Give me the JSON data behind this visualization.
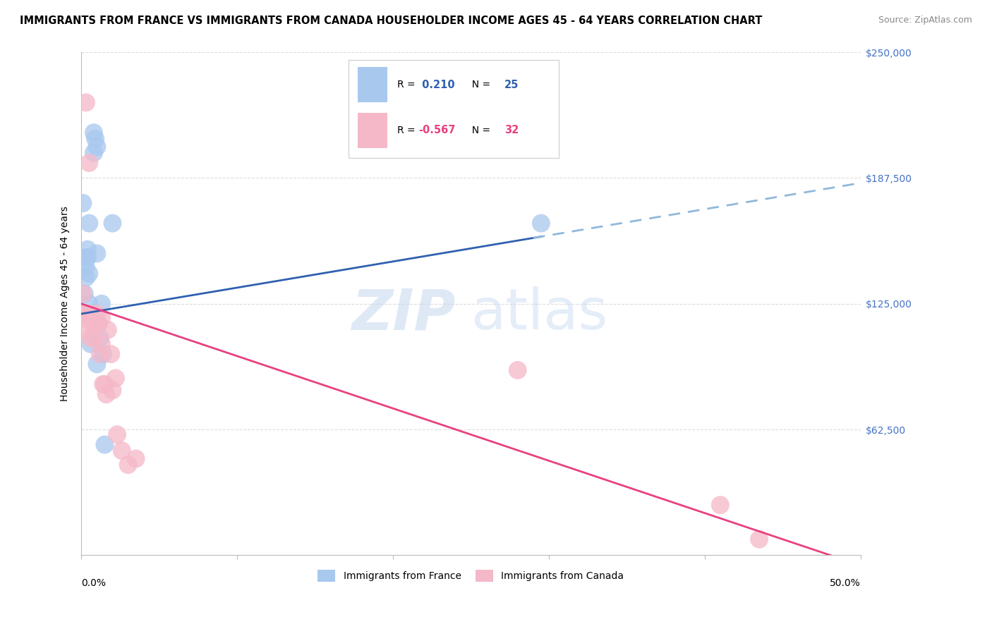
{
  "title": "IMMIGRANTS FROM FRANCE VS IMMIGRANTS FROM CANADA HOUSEHOLDER INCOME AGES 45 - 64 YEARS CORRELATION CHART",
  "source": "Source: ZipAtlas.com",
  "ylabel": "Householder Income Ages 45 - 64 years",
  "xlim": [
    0.0,
    0.5
  ],
  "ylim": [
    0,
    250000
  ],
  "yticks": [
    0,
    62500,
    125000,
    187500,
    250000
  ],
  "ytick_labels": [
    "",
    "$62,500",
    "$125,000",
    "$187,500",
    "$250,000"
  ],
  "ytick_labels_right": [
    "",
    "$62,500",
    "$125,000",
    "$187,500",
    "$250,000"
  ],
  "xtick_left_label": "0.0%",
  "xtick_right_label": "50.0%",
  "france_color": "#A8C8EE",
  "canada_color": "#F5B8C8",
  "france_R": 0.21,
  "france_N": 25,
  "canada_R": -0.567,
  "canada_N": 32,
  "france_line_color": "#3060B0",
  "canada_line_color": "#E84080",
  "regression_ext_color": "#90B8DC",
  "background_color": "#FFFFFF",
  "grid_color": "#DDDDDD",
  "watermark_zip": "ZIP",
  "watermark_atlas": "atlas",
  "france_scatter_x": [
    0.001,
    0.002,
    0.003,
    0.003,
    0.003,
    0.003,
    0.004,
    0.004,
    0.005,
    0.005,
    0.005,
    0.006,
    0.008,
    0.008,
    0.009,
    0.01,
    0.01,
    0.01,
    0.011,
    0.012,
    0.013,
    0.014,
    0.015,
    0.02,
    0.295
  ],
  "france_scatter_y": [
    175000,
    130000,
    148000,
    143000,
    138000,
    120000,
    152000,
    148000,
    165000,
    140000,
    125000,
    105000,
    200000,
    210000,
    207000,
    203000,
    150000,
    95000,
    115000,
    108000,
    125000,
    100000,
    55000,
    165000,
    165000
  ],
  "canada_scatter_x": [
    0.001,
    0.001,
    0.002,
    0.002,
    0.003,
    0.003,
    0.004,
    0.005,
    0.005,
    0.006,
    0.007,
    0.008,
    0.009,
    0.01,
    0.011,
    0.012,
    0.013,
    0.013,
    0.014,
    0.015,
    0.016,
    0.017,
    0.019,
    0.02,
    0.022,
    0.023,
    0.026,
    0.03,
    0.035,
    0.28,
    0.41,
    0.435
  ],
  "canada_scatter_y": [
    130000,
    118000,
    120000,
    112000,
    225000,
    120000,
    120000,
    120000,
    195000,
    108000,
    115000,
    108000,
    115000,
    120000,
    115000,
    100000,
    118000,
    105000,
    85000,
    85000,
    80000,
    112000,
    100000,
    82000,
    88000,
    60000,
    52000,
    45000,
    48000,
    92000,
    25000,
    8000
  ],
  "legend_france_label": "Immigrants from France",
  "legend_canada_label": "Immigrants from Canada",
  "title_fontsize": 10.5,
  "source_fontsize": 9,
  "tick_fontsize": 10,
  "ylabel_fontsize": 10,
  "legend_fontsize": 10,
  "france_line_intercept": 120000,
  "france_line_slope": 130000,
  "canada_line_intercept": 125000,
  "canada_line_slope": -260000
}
